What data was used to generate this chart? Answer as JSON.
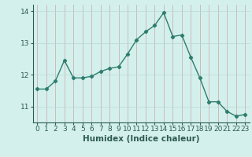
{
  "x": [
    0,
    1,
    2,
    3,
    4,
    5,
    6,
    7,
    8,
    9,
    10,
    11,
    12,
    13,
    14,
    15,
    16,
    17,
    18,
    19,
    20,
    21,
    22,
    23
  ],
  "y": [
    11.55,
    11.55,
    11.8,
    12.45,
    11.9,
    11.9,
    11.95,
    12.1,
    12.2,
    12.25,
    12.65,
    13.1,
    13.35,
    13.55,
    13.95,
    13.2,
    13.25,
    12.55,
    11.9,
    11.15,
    11.15,
    10.85,
    10.7,
    10.75
  ],
  "line_color": "#2e7d6e",
  "marker": "D",
  "marker_size": 2.2,
  "linewidth": 1.0,
  "bg_color": "#d4f0ec",
  "grid_color_v": "#c8a8a8",
  "grid_color_h": "#b8d8d4",
  "xlabel": "Humidex (Indice chaleur)",
  "xlabel_fontsize": 7.5,
  "yticks": [
    11,
    12,
    13,
    14
  ],
  "xticks": [
    0,
    1,
    2,
    3,
    4,
    5,
    6,
    7,
    8,
    9,
    10,
    11,
    12,
    13,
    14,
    15,
    16,
    17,
    18,
    19,
    20,
    21,
    22,
    23
  ],
  "ylim": [
    10.5,
    14.2
  ],
  "xlim": [
    -0.5,
    23.5
  ],
  "tick_fontsize": 6.5,
  "text_color": "#2d5a52"
}
